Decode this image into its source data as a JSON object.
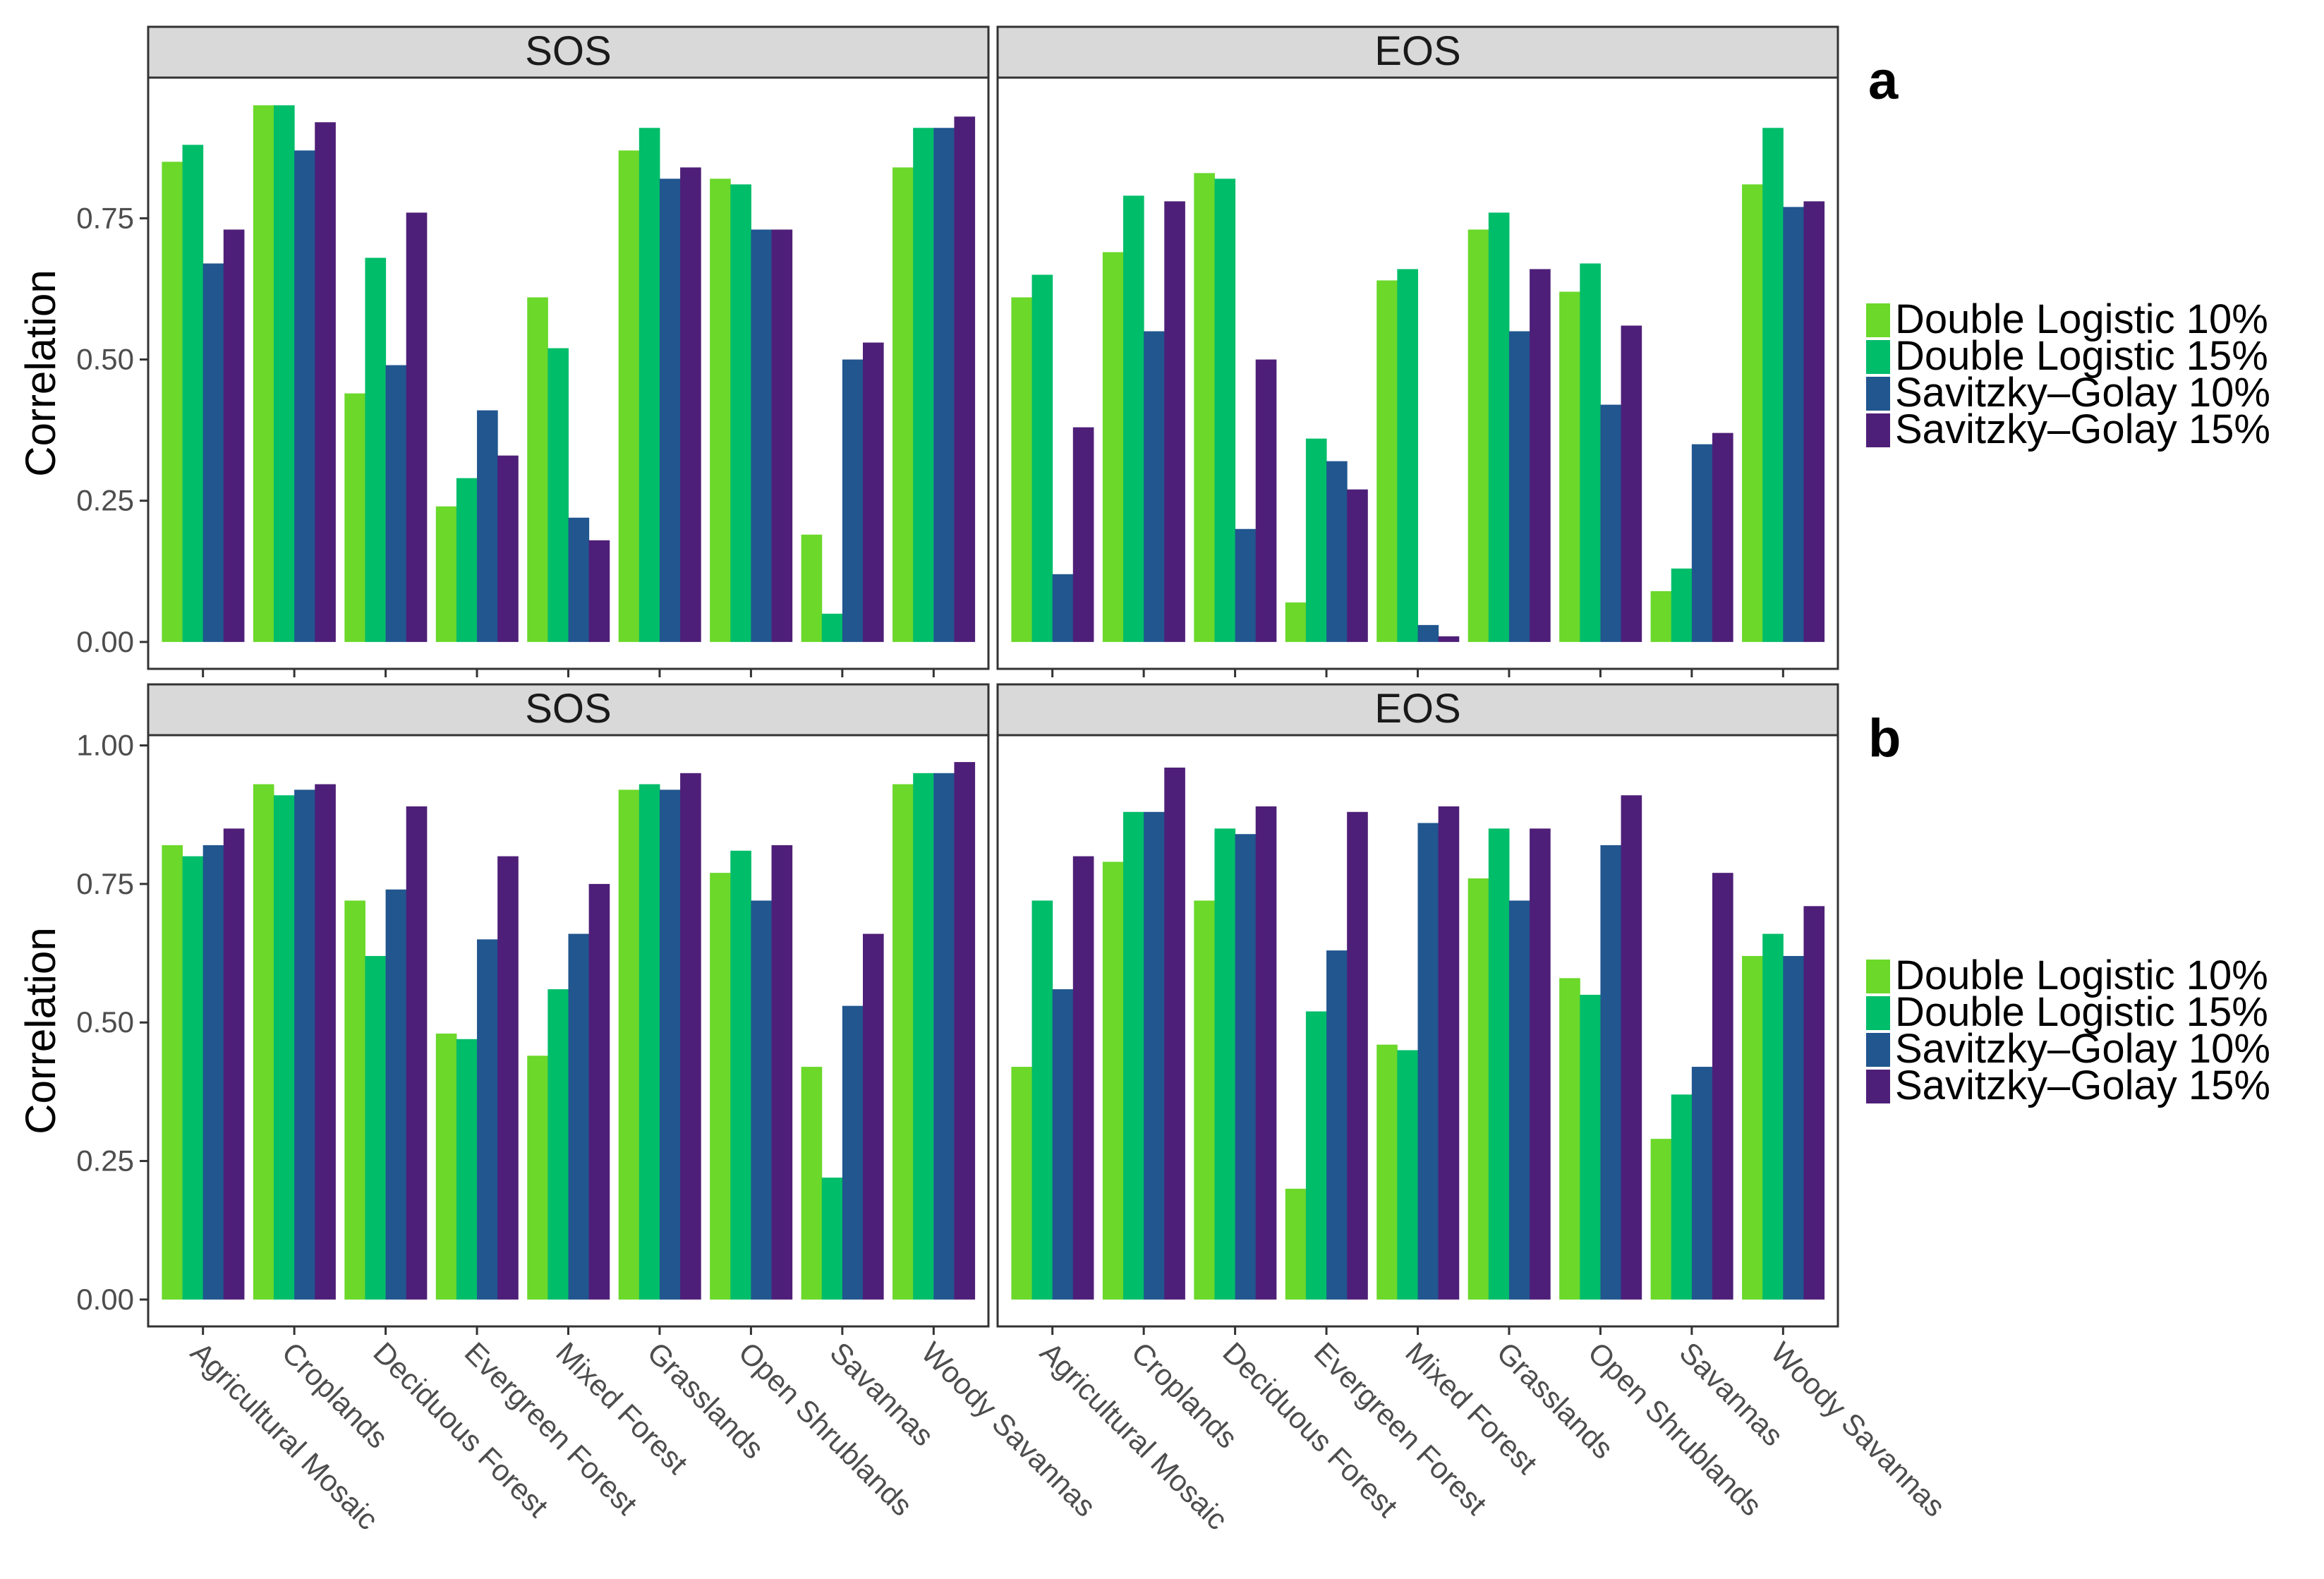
{
  "chart_data": {
    "type": "bar",
    "ylabel": "Correlation",
    "categories": [
      "Agricultural Mosaic",
      "Croplands",
      "Deciduous Forest",
      "Evergreen Forest",
      "Mixed Forest",
      "Grasslands",
      "Open Shrublands",
      "Savannas",
      "Woody Savannas"
    ],
    "series_names": [
      "Double Logistic 10%",
      "Double Logistic 15%",
      "Savitzky–Golay 10%",
      "Savitzky–Golay 15%"
    ],
    "colors": [
      "#6BD82A",
      "#00BD6A",
      "#21568F",
      "#4E1F78"
    ],
    "grid": false,
    "legend_position": "right",
    "panels": [
      {
        "label": "a",
        "ylim": [
          -0.0476,
          0.999
        ],
        "yticks": [
          0,
          0.25,
          0.5,
          0.75
        ],
        "ytick_labels": [
          "0.00",
          "0.25",
          "0.50",
          "0.75"
        ],
        "facets": [
          {
            "title": "SOS",
            "series": [
              [
                0.85,
                0.95,
                0.44,
                0.24,
                0.61,
                0.87,
                0.82,
                0.19,
                0.84
              ],
              [
                0.88,
                0.95,
                0.68,
                0.29,
                0.52,
                0.91,
                0.81,
                0.05,
                0.91
              ],
              [
                0.67,
                0.87,
                0.49,
                0.41,
                0.22,
                0.82,
                0.73,
                0.5,
                0.91
              ],
              [
                0.73,
                0.92,
                0.76,
                0.33,
                0.18,
                0.84,
                0.73,
                0.53,
                0.93
              ]
            ]
          },
          {
            "title": "EOS",
            "series": [
              [
                0.61,
                0.69,
                0.83,
                0.07,
                0.64,
                0.73,
                0.62,
                0.09,
                0.81
              ],
              [
                0.65,
                0.79,
                0.82,
                0.36,
                0.66,
                0.76,
                0.67,
                0.13,
                0.91
              ],
              [
                0.12,
                0.55,
                0.2,
                0.32,
                0.03,
                0.55,
                0.42,
                0.35,
                0.77
              ],
              [
                0.38,
                0.78,
                0.5,
                0.27,
                0.01,
                0.66,
                0.56,
                0.37,
                0.78
              ]
            ]
          }
        ]
      },
      {
        "label": "b",
        "ylim": [
          -0.0485,
          1.0185
        ],
        "yticks": [
          0,
          0.25,
          0.5,
          0.75,
          1.0
        ],
        "ytick_labels": [
          "0.00",
          "0.25",
          "0.50",
          "0.75",
          "1.00"
        ],
        "facets": [
          {
            "title": "SOS",
            "series": [
              [
                0.82,
                0.93,
                0.72,
                0.48,
                0.44,
                0.92,
                0.77,
                0.42,
                0.93
              ],
              [
                0.8,
                0.91,
                0.62,
                0.47,
                0.56,
                0.93,
                0.81,
                0.22,
                0.95
              ],
              [
                0.82,
                0.92,
                0.74,
                0.65,
                0.66,
                0.92,
                0.72,
                0.53,
                0.95
              ],
              [
                0.85,
                0.93,
                0.89,
                0.8,
                0.75,
                0.95,
                0.82,
                0.66,
                0.97
              ]
            ]
          },
          {
            "title": "EOS",
            "series": [
              [
                0.42,
                0.79,
                0.72,
                0.2,
                0.46,
                0.76,
                0.58,
                0.29,
                0.62
              ],
              [
                0.72,
                0.88,
                0.85,
                0.52,
                0.45,
                0.85,
                0.55,
                0.37,
                0.66
              ],
              [
                0.56,
                0.88,
                0.84,
                0.63,
                0.86,
                0.72,
                0.82,
                0.42,
                0.62
              ],
              [
                0.8,
                0.96,
                0.89,
                0.88,
                0.89,
                0.85,
                0.91,
                0.77,
                0.71
              ]
            ]
          }
        ]
      }
    ]
  }
}
